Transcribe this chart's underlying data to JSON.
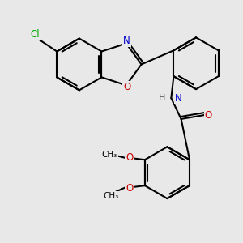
{
  "bg_color": "#e8e8e8",
  "bond_color": "#000000",
  "bond_width": 1.5,
  "atom_colors": {
    "C": "#000000",
    "N": "#0000cc",
    "O": "#cc0000",
    "Cl": "#00aa00",
    "H": "#555555"
  },
  "font_size": 8.5
}
